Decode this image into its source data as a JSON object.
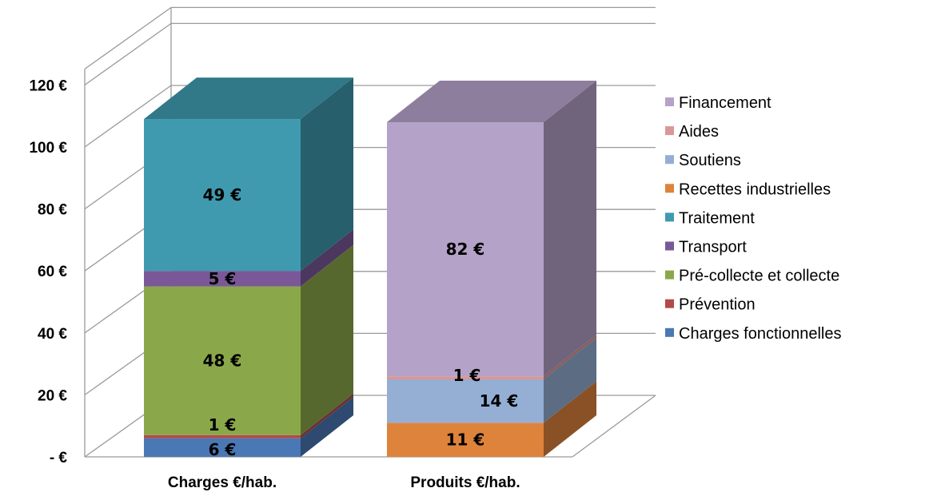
{
  "chart_data": {
    "type": "bar",
    "stacked": true,
    "three_d": true,
    "categories": [
      "Charges €/hab.",
      "Produits €/hab."
    ],
    "y_ticks": [
      "-  €",
      "20 €",
      "40 €",
      "60 €",
      "80 €",
      "100 €",
      "120 €"
    ],
    "ylim": [
      0,
      120
    ],
    "grid": true,
    "legend_position": "right",
    "series": [
      {
        "name": "Charges fonctionnelles",
        "color": "#4a78b4",
        "values": [
          6,
          0
        ],
        "labels": [
          "6 €",
          ""
        ]
      },
      {
        "name": "Prévention",
        "color": "#b24a4a",
        "values": [
          1,
          0
        ],
        "labels": [
          "1 €",
          ""
        ]
      },
      {
        "name": "Pré-collecte et collecte",
        "color": "#8aa84a",
        "values": [
          48,
          0
        ],
        "labels": [
          "48 €",
          ""
        ]
      },
      {
        "name": "Transport",
        "color": "#7a5898",
        "values": [
          5,
          0
        ],
        "labels": [
          "5 €",
          ""
        ]
      },
      {
        "name": "Traitement",
        "color": "#3f9ab0",
        "values": [
          49,
          0
        ],
        "labels": [
          "49 €",
          ""
        ]
      },
      {
        "name": "Recettes industrielles",
        "color": "#dd833c",
        "values": [
          0,
          11
        ],
        "labels": [
          "",
          "11 €"
        ]
      },
      {
        "name": "Soutiens",
        "color": "#95aed4",
        "values": [
          0,
          14
        ],
        "labels": [
          "",
          "14 €"
        ]
      },
      {
        "name": "Aides",
        "color": "#d99797",
        "values": [
          0,
          1
        ],
        "labels": [
          "",
          "1 €"
        ]
      },
      {
        "name": "Financement",
        "color": "#b4a2c8",
        "values": [
          0,
          82
        ],
        "labels": [
          "",
          "82 €"
        ]
      }
    ]
  }
}
